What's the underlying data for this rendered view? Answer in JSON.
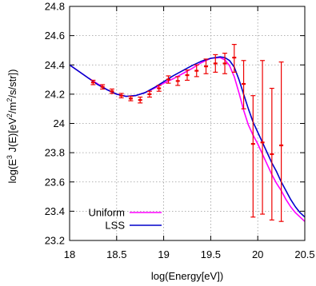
{
  "chart_data": {
    "type": "line",
    "title": "",
    "xlabel": "log(Energy[eV])",
    "ylabel_parts": [
      "log(E",
      "3",
      " J(E)[eV",
      "2",
      "/m",
      "2",
      "/s/str])"
    ],
    "xlim": [
      18,
      20.5
    ],
    "ylim": [
      23.2,
      24.8
    ],
    "x_ticks": [
      "18",
      "18.5",
      "19",
      "19.5",
      "20",
      "20.5"
    ],
    "y_ticks": [
      "23.2",
      "23.4",
      "23.6",
      "23.8",
      "24",
      "24.2",
      "24.4",
      "24.6",
      "24.8"
    ],
    "grid": true,
    "legend_placement": "bottom-left",
    "series": [
      {
        "name": "Uniform",
        "color": "#ff00ff",
        "x": [
          18.0,
          18.1,
          18.2,
          18.3,
          18.4,
          18.5,
          18.6,
          18.7,
          18.8,
          18.9,
          19.0,
          19.1,
          19.2,
          19.3,
          19.4,
          19.5,
          19.6,
          19.65,
          19.7,
          19.75,
          19.8,
          19.85,
          19.9,
          19.95,
          20.0,
          20.05,
          20.1,
          20.15,
          20.2,
          20.25,
          20.3,
          20.35,
          20.4,
          20.45,
          20.5
        ],
        "y": [
          24.4,
          24.355,
          24.31,
          24.27,
          24.23,
          24.2,
          24.185,
          24.19,
          24.21,
          24.24,
          24.275,
          24.305,
          24.34,
          24.375,
          24.415,
          24.445,
          24.45,
          24.435,
          24.395,
          24.32,
          24.21,
          24.09,
          23.99,
          23.92,
          23.86,
          23.79,
          23.72,
          23.65,
          23.59,
          23.54,
          23.48,
          23.43,
          23.39,
          23.36,
          23.33
        ]
      },
      {
        "name": "LSS",
        "color": "#0000cc",
        "x": [
          18.0,
          18.1,
          18.2,
          18.3,
          18.4,
          18.5,
          18.6,
          18.7,
          18.8,
          18.9,
          19.0,
          19.1,
          19.2,
          19.3,
          19.4,
          19.5,
          19.6,
          19.65,
          19.7,
          19.75,
          19.8,
          19.85,
          19.9,
          19.95,
          20.0,
          20.05,
          20.1,
          20.15,
          20.2,
          20.25,
          20.3,
          20.35,
          20.4,
          20.45,
          20.5
        ],
        "y": [
          24.4,
          24.355,
          24.31,
          24.265,
          24.23,
          24.2,
          24.185,
          24.19,
          24.21,
          24.245,
          24.285,
          24.325,
          24.36,
          24.395,
          24.425,
          24.445,
          24.455,
          24.45,
          24.43,
          24.385,
          24.3,
          24.2,
          24.1,
          24.01,
          23.94,
          23.87,
          23.8,
          23.73,
          23.67,
          23.6,
          23.54,
          23.48,
          23.43,
          23.39,
          23.36
        ]
      }
    ],
    "data_points": {
      "color": "#ee0000",
      "x": [
        18.25,
        18.35,
        18.45,
        18.55,
        18.65,
        18.75,
        18.85,
        18.95,
        19.05,
        19.15,
        19.25,
        19.35,
        19.45,
        19.55,
        19.65,
        19.75,
        19.85,
        19.95,
        20.05,
        20.15,
        20.25
      ],
      "y": [
        24.28,
        24.25,
        24.22,
        24.19,
        24.17,
        24.16,
        24.2,
        24.24,
        24.3,
        24.29,
        24.33,
        24.36,
        24.39,
        24.41,
        24.41,
        24.45,
        24.27,
        23.86,
        23.87,
        23.79,
        23.85
      ],
      "err_low": [
        0.015,
        0.015,
        0.015,
        0.015,
        0.015,
        0.02,
        0.02,
        0.02,
        0.025,
        0.03,
        0.035,
        0.04,
        0.05,
        0.06,
        0.07,
        0.1,
        0.17,
        0.5,
        0.49,
        0.45,
        0.52
      ],
      "err_high": [
        0.015,
        0.015,
        0.015,
        0.015,
        0.015,
        0.02,
        0.02,
        0.02,
        0.025,
        0.03,
        0.035,
        0.04,
        0.05,
        0.06,
        0.07,
        0.09,
        0.16,
        0.33,
        0.56,
        0.45,
        0.57
      ]
    }
  }
}
